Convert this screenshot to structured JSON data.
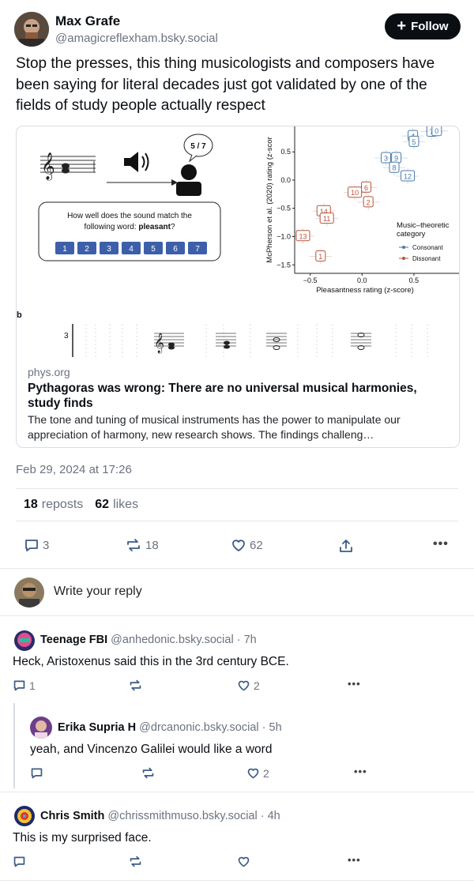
{
  "post": {
    "author_name": "Max Grafe",
    "author_handle": "@amagicreflexham.bsky.social",
    "follow_label": "Follow",
    "text": "Stop the presses, this thing musicologists and composers have been saying for literal decades just got validated by one of the fields of study people actually respect",
    "timestamp": "Feb 29, 2024 at 17:26",
    "reposts_count": "18",
    "reposts_label": "reposts",
    "likes_count": "62",
    "likes_label": "likes",
    "reply_count": "3",
    "repost_count_action": "18",
    "like_count_action": "62"
  },
  "embed": {
    "image": {
      "bubble": "5 / 7",
      "question_line1": "How well does the sound match the",
      "question_line2_prefix": "following word: ",
      "question_line2_bold": "pleasant",
      "question_line2_suffix": "?",
      "scale": [
        "1",
        "2",
        "3",
        "4",
        "5",
        "6",
        "7"
      ],
      "ylabel": "McPherson et al. (2020) rating (z-scor",
      "xlabel": "Pleasantness rating (z-score)",
      "yticks": [
        "0.5",
        "0.0",
        "−0.5",
        "−1.0",
        "−1.5"
      ],
      "xticks": [
        "−0.5",
        "0.0",
        "0.5"
      ],
      "legend_title_1": "Music–theoretic",
      "legend_title_2": "category",
      "legend_consonant": "Consonant",
      "legend_dissonant": "Dissonant",
      "consonant_color": "#4a7aa8",
      "dissonant_color": "#b5533a",
      "consonant_points": [
        {
          "label": "7",
          "x": 0.67,
          "y": 0.86
        },
        {
          "label": "0",
          "x": 0.72,
          "y": 0.87
        },
        {
          "label": "4",
          "x": 0.49,
          "y": 0.78
        },
        {
          "label": "5",
          "x": 0.5,
          "y": 0.68
        },
        {
          "label": "3",
          "x": 0.23,
          "y": 0.39
        },
        {
          "label": "9",
          "x": 0.33,
          "y": 0.39
        },
        {
          "label": "8",
          "x": 0.31,
          "y": 0.22
        },
        {
          "label": "12",
          "x": 0.44,
          "y": 0.07
        }
      ],
      "dissonant_points": [
        {
          "label": "6",
          "x": 0.04,
          "y": -0.13
        },
        {
          "label": "10",
          "x": -0.07,
          "y": -0.22
        },
        {
          "label": "2",
          "x": 0.06,
          "y": -0.39
        },
        {
          "label": "14",
          "x": -0.37,
          "y": -0.55
        },
        {
          "label": "11",
          "x": -0.34,
          "y": -0.68
        },
        {
          "label": "13",
          "x": -0.57,
          "y": -0.99
        },
        {
          "label": "1",
          "x": -0.4,
          "y": -1.35
        }
      ],
      "panel_b": "b",
      "panel_b_row": "3"
    },
    "domain": "phys.org",
    "title": "Pythagoras was wrong: There are no universal musical harmonies, study finds",
    "description": "The tone and tuning of musical instruments has the power to manipulate our appreciation of harmony, new research shows. The findings challeng…"
  },
  "reply_box": {
    "placeholder": "Write your reply"
  },
  "replies": [
    {
      "name": "Teenage FBI",
      "handle": "@anhedonic.bsky.social",
      "age": "· 7h",
      "text": "Heck, Aristoxenus said this in the 3rd century BCE.",
      "reply_count": "1",
      "repost_count": "",
      "like_count": "2"
    },
    {
      "name": "Erika Supria H",
      "handle": "@drcanonic.bsky.social",
      "age": "· 5h",
      "text": "yeah, and Vincenzo Galilei would like a word",
      "reply_count": "",
      "repost_count": "",
      "like_count": "2"
    },
    {
      "name": "Chris Smith",
      "handle": "@chrissmithmuso.bsky.social",
      "age": "· 4h",
      "text": "This is my surprised face.",
      "reply_count": "",
      "repost_count": "",
      "like_count": ""
    }
  ]
}
